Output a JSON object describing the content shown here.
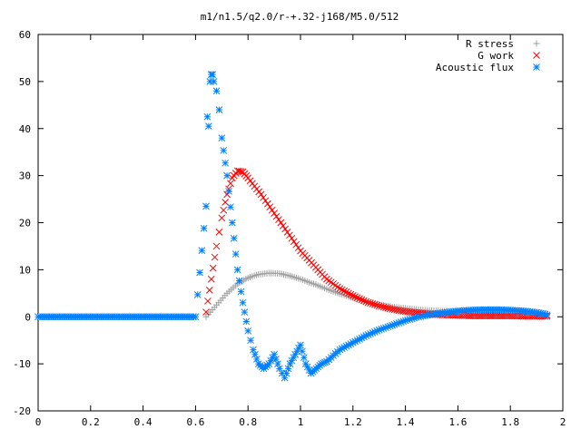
{
  "chart_data": {
    "type": "scatter",
    "title": "m1/n1.5/q2.0/r-+.32-j168/M5.0/512",
    "xlabel": "",
    "ylabel": "",
    "xlim": [
      0,
      2
    ],
    "ylim": [
      -20,
      60
    ],
    "xticks": [
      0,
      0.2,
      0.4,
      0.6,
      0.8,
      1,
      1.2,
      1.4,
      1.6,
      1.8,
      2
    ],
    "xtick_labels": [
      "0",
      "0.2",
      "0.4",
      "0.6",
      "0.8",
      "1",
      "1.2",
      "1.4",
      "1.6",
      "1.8",
      "2"
    ],
    "yticks": [
      -20,
      -10,
      0,
      10,
      20,
      30,
      40,
      50,
      60
    ],
    "ytick_labels": [
      "-20",
      "-10",
      "0",
      "10",
      "20",
      "30",
      "40",
      "50",
      "60"
    ],
    "grid": false,
    "legend_position": "top-right",
    "series": [
      {
        "name": "R stress",
        "marker": "plus",
        "color": "#a0a0a0",
        "x": [
          0.64,
          0.68,
          0.72,
          0.76,
          0.8,
          0.84,
          0.88,
          0.92,
          0.96,
          1.0,
          1.05,
          1.1,
          1.15,
          1.2,
          1.25,
          1.3,
          1.35,
          1.4,
          1.45,
          1.5,
          1.55,
          1.6,
          1.65,
          1.7,
          1.75,
          1.8,
          1.85,
          1.9,
          1.94
        ],
        "y": [
          0,
          2.5,
          5,
          7,
          8.3,
          9,
          9.3,
          9.2,
          8.7,
          8.0,
          7.0,
          5.9,
          4.9,
          4.0,
          3.2,
          2.6,
          2.1,
          1.8,
          1.5,
          1.3,
          1.2,
          1.2,
          1.2,
          1.3,
          1.4,
          1.4,
          1.3,
          1.0,
          0.7
        ]
      },
      {
        "name": "G work",
        "marker": "cross",
        "color": "#ff0000",
        "x": [
          0.64,
          0.66,
          0.68,
          0.7,
          0.72,
          0.74,
          0.76,
          0.78,
          0.8,
          0.85,
          0.9,
          0.95,
          1.0,
          1.05,
          1.1,
          1.15,
          1.2,
          1.25,
          1.3,
          1.35,
          1.4,
          1.45,
          1.5,
          1.55,
          1.6,
          1.65,
          1.7,
          1.75,
          1.8,
          1.85,
          1.9,
          1.94
        ],
        "y": [
          1,
          8,
          15,
          21,
          26,
          29.5,
          31,
          30.8,
          29.5,
          26,
          22,
          18,
          14,
          11,
          8,
          6,
          4.5,
          3.2,
          2.3,
          1.6,
          1.1,
          0.8,
          0.5,
          0.4,
          0.3,
          0.2,
          0.2,
          0.2,
          0.2,
          0.1,
          0.1,
          0.1
        ]
      },
      {
        "name": "Acoustic flux",
        "marker": "star",
        "color": "#0080ff",
        "x": [
          0.0,
          0.05,
          0.1,
          0.15,
          0.2,
          0.25,
          0.3,
          0.35,
          0.4,
          0.45,
          0.5,
          0.55,
          0.6,
          0.64,
          0.645,
          0.65,
          0.655,
          0.66,
          0.665,
          0.67,
          0.68,
          0.69,
          0.7,
          0.72,
          0.74,
          0.76,
          0.78,
          0.8,
          0.82,
          0.84,
          0.86,
          0.88,
          0.9,
          0.92,
          0.94,
          0.96,
          0.98,
          1.0,
          1.02,
          1.04,
          1.06,
          1.08,
          1.1,
          1.15,
          1.2,
          1.25,
          1.3,
          1.35,
          1.4,
          1.45,
          1.5,
          1.55,
          1.6,
          1.65,
          1.7,
          1.75,
          1.8,
          1.85,
          1.9,
          1.94
        ],
        "y": [
          0,
          0,
          0,
          0,
          0,
          0,
          0,
          0,
          0,
          0,
          0,
          0,
          0,
          23.5,
          42.5,
          40.5,
          50,
          51.5,
          51.5,
          50,
          48,
          44,
          38,
          30,
          20,
          10,
          3,
          -3,
          -7,
          -10,
          -11,
          -10,
          -8,
          -11,
          -13,
          -10,
          -8,
          -6,
          -10,
          -12,
          -11,
          -10,
          -9.5,
          -7,
          -5.5,
          -4,
          -2.8,
          -1.8,
          -0.8,
          0,
          0.5,
          0.9,
          1.2,
          1.4,
          1.5,
          1.5,
          1.4,
          1.2,
          0.9,
          0.4
        ]
      }
    ]
  }
}
